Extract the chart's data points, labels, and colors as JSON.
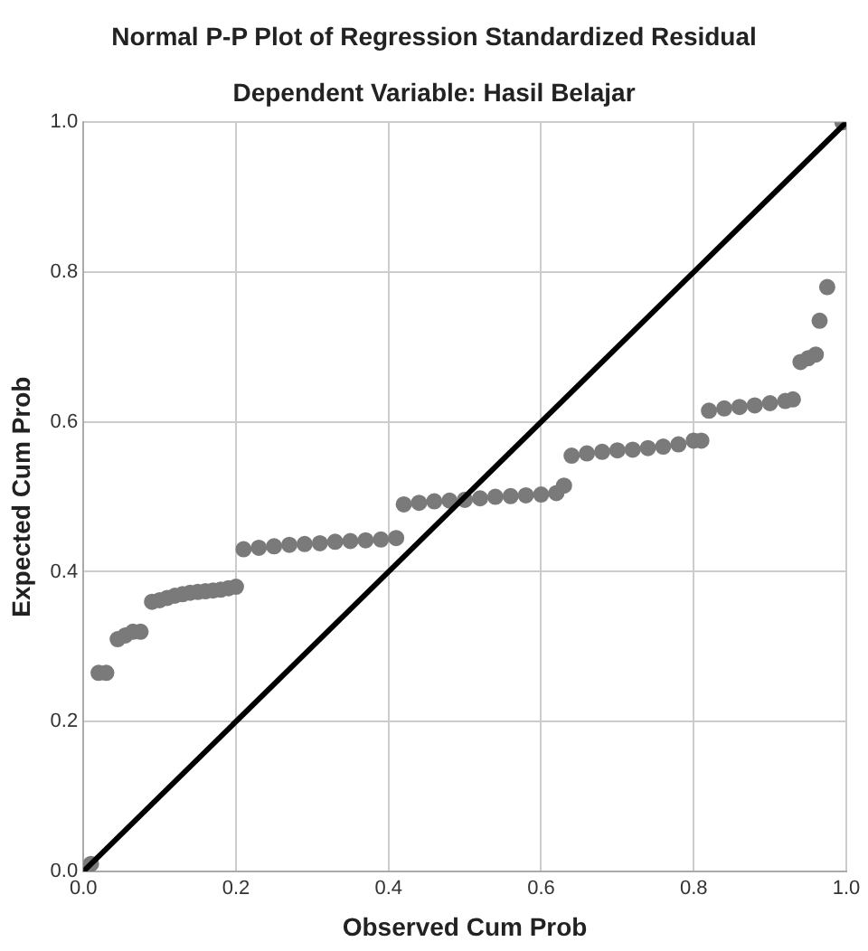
{
  "chart_data": {
    "type": "scatter",
    "title": "Normal P-P Plot of Regression Standardized Residual",
    "subtitle": "Dependent Variable: Hasil Belajar",
    "xlabel": "Observed Cum Prob",
    "ylabel": "Expected Cum Prob",
    "xlim": [
      0,
      1
    ],
    "ylim": [
      0,
      1
    ],
    "xticks": [
      {
        "value": 0,
        "label": "0.0"
      },
      {
        "value": 0.2,
        "label": "0.2"
      },
      {
        "value": 0.4,
        "label": "0.4"
      },
      {
        "value": 0.6,
        "label": "0.6"
      },
      {
        "value": 0.8,
        "label": "0.8"
      },
      {
        "value": 1,
        "label": "1.0"
      }
    ],
    "yticks": [
      {
        "value": 0,
        "label": "0.0"
      },
      {
        "value": 0.2,
        "label": "0.2"
      },
      {
        "value": 0.4,
        "label": "0.4"
      },
      {
        "value": 0.6,
        "label": "0.6"
      },
      {
        "value": 0.8,
        "label": "0.8"
      },
      {
        "value": 1,
        "label": "1.0"
      }
    ],
    "grid": true,
    "marker": "circle",
    "legend": false,
    "series": [
      {
        "color": "#7a7a7a",
        "x": [
          0.01,
          0.02,
          0.03,
          0.045,
          0.055,
          0.065,
          0.075,
          0.09,
          0.1,
          0.11,
          0.12,
          0.13,
          0.14,
          0.15,
          0.16,
          0.17,
          0.18,
          0.19,
          0.2,
          0.21,
          0.23,
          0.25,
          0.27,
          0.29,
          0.31,
          0.33,
          0.35,
          0.37,
          0.39,
          0.41,
          0.42,
          0.44,
          0.46,
          0.48,
          0.5,
          0.52,
          0.54,
          0.56,
          0.58,
          0.6,
          0.62,
          0.63,
          0.64,
          0.66,
          0.68,
          0.7,
          0.72,
          0.74,
          0.76,
          0.78,
          0.8,
          0.81,
          0.82,
          0.84,
          0.86,
          0.88,
          0.9,
          0.92,
          0.93,
          0.94,
          0.95,
          0.96,
          0.965,
          0.975,
          0.995
        ],
        "values": [
          0.01,
          0.265,
          0.265,
          0.31,
          0.315,
          0.32,
          0.32,
          0.36,
          0.362,
          0.365,
          0.368,
          0.37,
          0.372,
          0.373,
          0.374,
          0.375,
          0.376,
          0.378,
          0.38,
          0.43,
          0.432,
          0.434,
          0.436,
          0.437,
          0.438,
          0.44,
          0.441,
          0.442,
          0.443,
          0.445,
          0.49,
          0.492,
          0.494,
          0.495,
          0.496,
          0.498,
          0.5,
          0.501,
          0.502,
          0.503,
          0.505,
          0.515,
          0.555,
          0.558,
          0.56,
          0.562,
          0.563,
          0.565,
          0.567,
          0.57,
          0.575,
          0.575,
          0.615,
          0.618,
          0.62,
          0.622,
          0.625,
          0.628,
          0.63,
          0.68,
          0.685,
          0.69,
          0.735,
          0.78,
          1.0
        ]
      },
      {
        "type": "line",
        "marker": "none",
        "color": "#000000",
        "x": [
          0,
          1
        ],
        "values": [
          0,
          1
        ]
      }
    ]
  }
}
